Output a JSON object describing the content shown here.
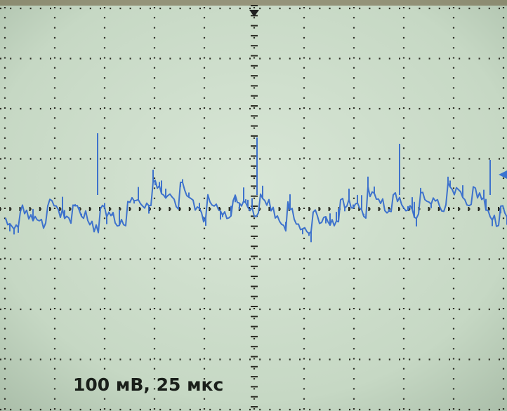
{
  "caption": "100 мВ, 25 мкс"
}
